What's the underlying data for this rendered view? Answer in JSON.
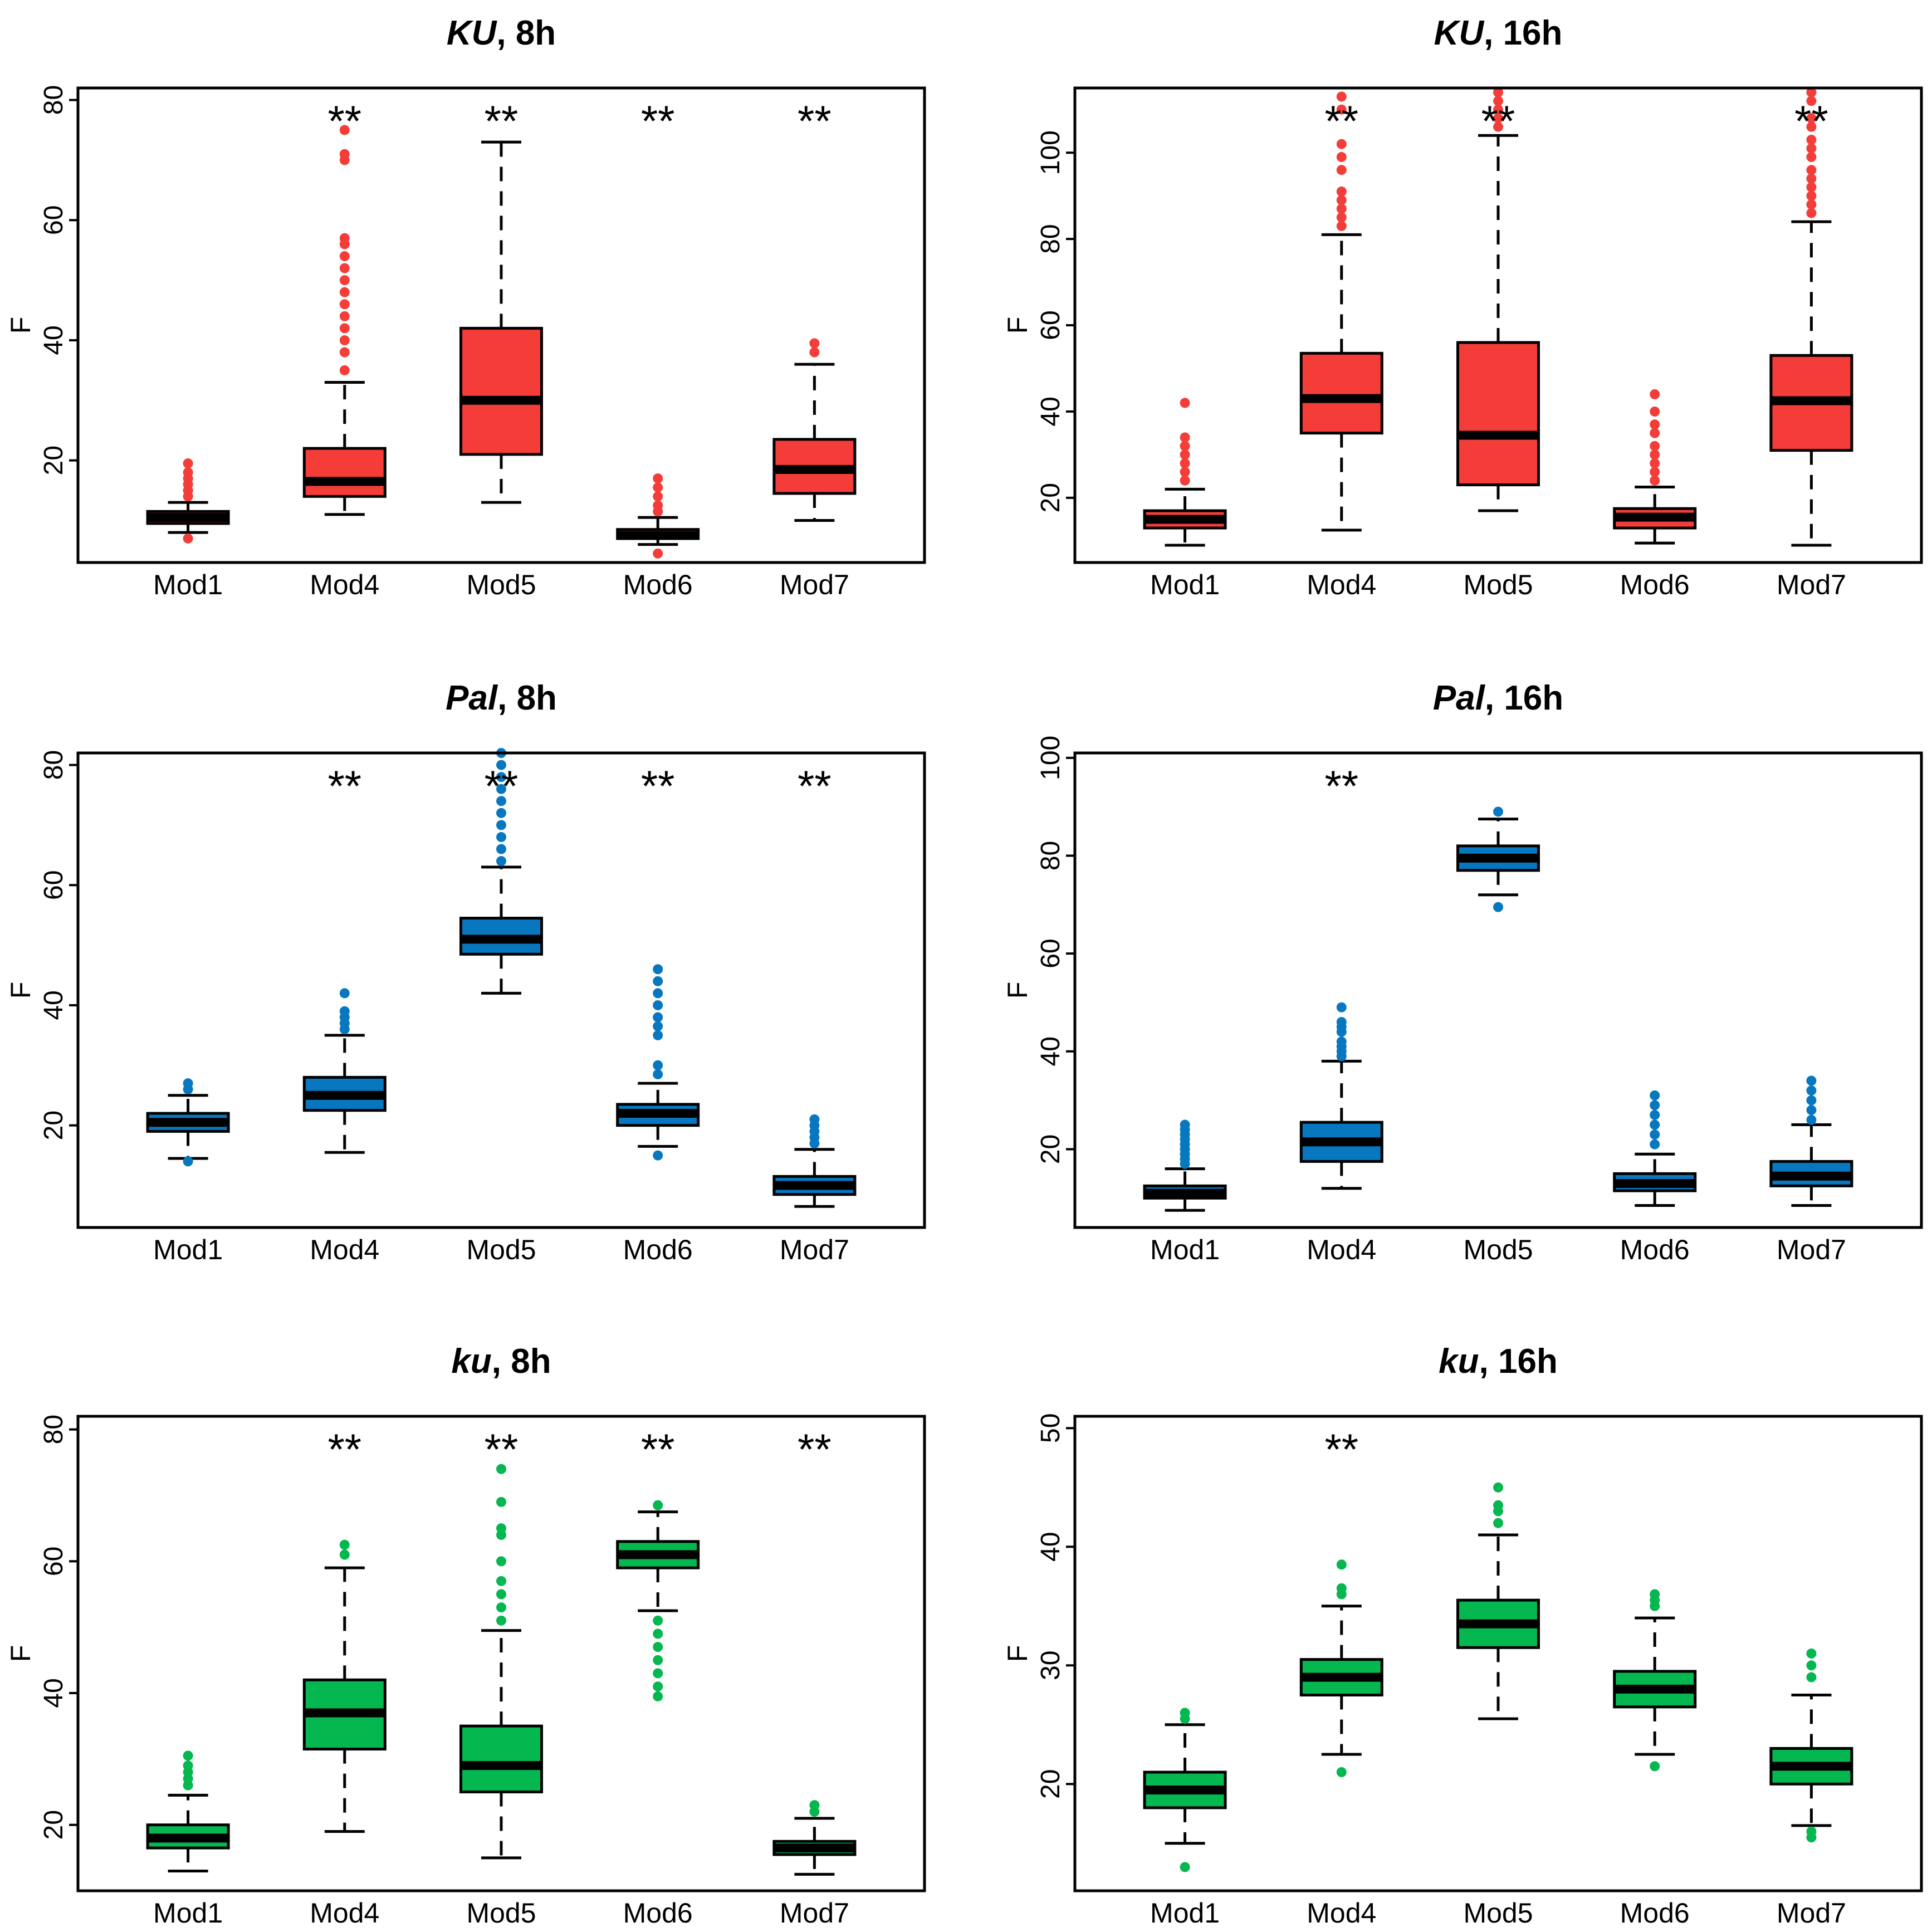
{
  "chart_data": [
    {
      "type": "boxplot",
      "title_italic": "KU",
      "title_rest": ", 8h",
      "ylabel": "F",
      "ylim": [
        3,
        82
      ],
      "yticks": [
        20,
        40,
        60,
        80
      ],
      "color": "#f43d38",
      "categories": [
        "Mod1",
        "Mod4",
        "Mod5",
        "Mod6",
        "Mod7"
      ],
      "significance": [
        "",
        "**",
        "**",
        "**",
        "**"
      ],
      "boxes": [
        {
          "wlo": 8,
          "q1": 9.5,
          "median": 10.5,
          "q3": 11.5,
          "whi": 13,
          "outliers": [
            7,
            14,
            15,
            16,
            17,
            18,
            19.5
          ]
        },
        {
          "wlo": 11,
          "q1": 14,
          "median": 16.5,
          "q3": 22,
          "whi": 33,
          "outliers": [
            35,
            38,
            40,
            42,
            44,
            46,
            48,
            50,
            52,
            54,
            56,
            57,
            70,
            71,
            75
          ]
        },
        {
          "wlo": 13,
          "q1": 21,
          "median": 30,
          "q3": 42,
          "whi": 73,
          "outliers": []
        },
        {
          "wlo": 6,
          "q1": 7,
          "median": 7.5,
          "q3": 8.5,
          "whi": 10.5,
          "outliers": [
            4.5,
            11.5,
            12.5,
            14,
            15.5,
            17
          ]
        },
        {
          "wlo": 10,
          "q1": 14.5,
          "median": 18.5,
          "q3": 23.5,
          "whi": 36,
          "outliers": [
            38,
            39.5
          ]
        }
      ]
    },
    {
      "type": "boxplot",
      "title_italic": "KU",
      "title_rest": ", 16h",
      "ylabel": "F",
      "ylim": [
        5,
        115
      ],
      "yticks": [
        20,
        40,
        60,
        80,
        100
      ],
      "color": "#f43d38",
      "categories": [
        "Mod1",
        "Mod4",
        "Mod5",
        "Mod6",
        "Mod7"
      ],
      "significance": [
        "",
        "**",
        "**",
        "",
        "**"
      ],
      "boxes": [
        {
          "wlo": 9,
          "q1": 13,
          "median": 15,
          "q3": 17,
          "whi": 22,
          "outliers": [
            24,
            26,
            28,
            30,
            32,
            34,
            42
          ]
        },
        {
          "wlo": 12.5,
          "q1": 35,
          "median": 43,
          "q3": 53.5,
          "whi": 81,
          "outliers": [
            83,
            85,
            87,
            89,
            91,
            96,
            99,
            102,
            110,
            113
          ]
        },
        {
          "wlo": 17,
          "q1": 23,
          "median": 34.5,
          "q3": 56,
          "whi": 104,
          "outliers": [
            106,
            108,
            110,
            112,
            114
          ]
        },
        {
          "wlo": 9.5,
          "q1": 13,
          "median": 15.5,
          "q3": 17.5,
          "whi": 22.5,
          "outliers": [
            24,
            26,
            28,
            30,
            32,
            35,
            37,
            40,
            44
          ]
        },
        {
          "wlo": 9,
          "q1": 31,
          "median": 42.5,
          "q3": 53,
          "whi": 84,
          "outliers": [
            86,
            88,
            90,
            92,
            94,
            96,
            99,
            101,
            103,
            106,
            108,
            112,
            114
          ]
        }
      ]
    },
    {
      "type": "boxplot",
      "title_italic": "Pal",
      "title_rest": ", 8h",
      "ylabel": "F",
      "ylim": [
        3,
        82
      ],
      "yticks": [
        20,
        40,
        60,
        80
      ],
      "color": "#0778bf",
      "categories": [
        "Mod1",
        "Mod4",
        "Mod5",
        "Mod6",
        "Mod7"
      ],
      "significance": [
        "",
        "**",
        "**",
        "**",
        "**"
      ],
      "boxes": [
        {
          "wlo": 14.5,
          "q1": 19,
          "median": 20.5,
          "q3": 22,
          "whi": 25,
          "outliers": [
            14,
            26,
            27
          ]
        },
        {
          "wlo": 15.5,
          "q1": 22.5,
          "median": 25,
          "q3": 28,
          "whi": 35,
          "outliers": [
            36,
            37,
            38,
            39,
            42
          ]
        },
        {
          "wlo": 42,
          "q1": 48.5,
          "median": 51,
          "q3": 54.5,
          "whi": 63,
          "outliers": [
            64,
            66,
            68,
            70,
            72,
            74,
            76,
            78,
            80,
            82
          ]
        },
        {
          "wlo": 16.5,
          "q1": 20,
          "median": 22,
          "q3": 23.5,
          "whi": 27,
          "outliers": [
            15,
            28.5,
            30,
            35,
            36.5,
            38,
            40,
            42,
            44,
            46
          ]
        },
        {
          "wlo": 6.5,
          "q1": 8.5,
          "median": 10,
          "q3": 11.5,
          "whi": 16,
          "outliers": [
            17,
            18,
            19,
            20,
            21
          ]
        }
      ]
    },
    {
      "type": "boxplot",
      "title_italic": "Pal",
      "title_rest": ", 16h",
      "ylabel": "F",
      "ylim": [
        4,
        101
      ],
      "yticks": [
        20,
        40,
        60,
        80,
        100
      ],
      "color": "#0778bf",
      "categories": [
        "Mod1",
        "Mod4",
        "Mod5",
        "Mod6",
        "Mod7"
      ],
      "significance": [
        "",
        "**",
        "",
        "",
        ""
      ],
      "boxes": [
        {
          "wlo": 7.5,
          "q1": 10,
          "median": 11,
          "q3": 12.5,
          "whi": 16,
          "outliers": [
            17,
            18,
            19,
            20,
            21,
            22,
            23,
            24,
            25
          ]
        },
        {
          "wlo": 12,
          "q1": 17.5,
          "median": 21.5,
          "q3": 25.5,
          "whi": 38,
          "outliers": [
            39,
            40,
            41,
            42,
            44,
            45,
            46,
            49
          ]
        },
        {
          "wlo": 72,
          "q1": 77,
          "median": 79.5,
          "q3": 82,
          "whi": 87.5,
          "outliers": [
            69.5,
            89
          ]
        },
        {
          "wlo": 8.5,
          "q1": 11.5,
          "median": 13,
          "q3": 15,
          "whi": 19,
          "outliers": [
            21,
            23,
            25,
            27,
            29,
            31
          ]
        },
        {
          "wlo": 8.5,
          "q1": 12.5,
          "median": 14.5,
          "q3": 17.5,
          "whi": 25,
          "outliers": [
            26,
            28,
            30,
            32,
            34
          ]
        }
      ]
    },
    {
      "type": "boxplot",
      "title_italic": "ku",
      "title_rest": ", 8h",
      "ylabel": "F",
      "ylim": [
        10,
        82
      ],
      "yticks": [
        20,
        40,
        60,
        80
      ],
      "color": "#05b74f",
      "categories": [
        "Mod1",
        "Mod4",
        "Mod5",
        "Mod6",
        "Mod7"
      ],
      "significance": [
        "",
        "**",
        "**",
        "**",
        "**"
      ],
      "boxes": [
        {
          "wlo": 13,
          "q1": 16.5,
          "median": 18,
          "q3": 20,
          "whi": 24.5,
          "outliers": [
            26,
            27,
            28,
            29,
            30.5
          ]
        },
        {
          "wlo": 19,
          "q1": 31.5,
          "median": 37,
          "q3": 42,
          "whi": 59,
          "outliers": [
            61,
            62.5
          ]
        },
        {
          "wlo": 15,
          "q1": 25,
          "median": 29,
          "q3": 35,
          "whi": 49.5,
          "outliers": [
            51,
            53,
            55,
            57,
            60,
            64,
            65,
            69,
            74
          ]
        },
        {
          "wlo": 52.5,
          "q1": 59,
          "median": 61,
          "q3": 63,
          "whi": 67.5,
          "outliers": [
            68.5,
            51,
            49,
            47,
            45,
            43,
            41,
            39.5
          ]
        },
        {
          "wlo": 12.5,
          "q1": 15.5,
          "median": 16.5,
          "q3": 17.5,
          "whi": 21,
          "outliers": [
            22,
            23
          ]
        }
      ]
    },
    {
      "type": "boxplot",
      "title_italic": "ku",
      "title_rest": ", 16h",
      "ylabel": "F",
      "ylim": [
        11,
        51
      ],
      "yticks": [
        20,
        30,
        40,
        50
      ],
      "color": "#05b74f",
      "categories": [
        "Mod1",
        "Mod4",
        "Mod5",
        "Mod6",
        "Mod7"
      ],
      "significance": [
        "",
        "**",
        "",
        "",
        ""
      ],
      "boxes": [
        {
          "wlo": 15,
          "q1": 18,
          "median": 19.5,
          "q3": 21,
          "whi": 25,
          "outliers": [
            13,
            25.5,
            26
          ]
        },
        {
          "wlo": 22.5,
          "q1": 27.5,
          "median": 29,
          "q3": 30.5,
          "whi": 35,
          "outliers": [
            21,
            36,
            36.5,
            38.5
          ]
        },
        {
          "wlo": 25.5,
          "q1": 31.5,
          "median": 33.5,
          "q3": 35.5,
          "whi": 41,
          "outliers": [
            42,
            43,
            43.5,
            45
          ]
        },
        {
          "wlo": 22.5,
          "q1": 26.5,
          "median": 28,
          "q3": 29.5,
          "whi": 34,
          "outliers": [
            21.5,
            35,
            35.5,
            36
          ]
        },
        {
          "wlo": 16.5,
          "q1": 20,
          "median": 21.5,
          "q3": 23,
          "whi": 27.5,
          "outliers": [
            16,
            15.5,
            29,
            30,
            31
          ]
        }
      ]
    }
  ]
}
